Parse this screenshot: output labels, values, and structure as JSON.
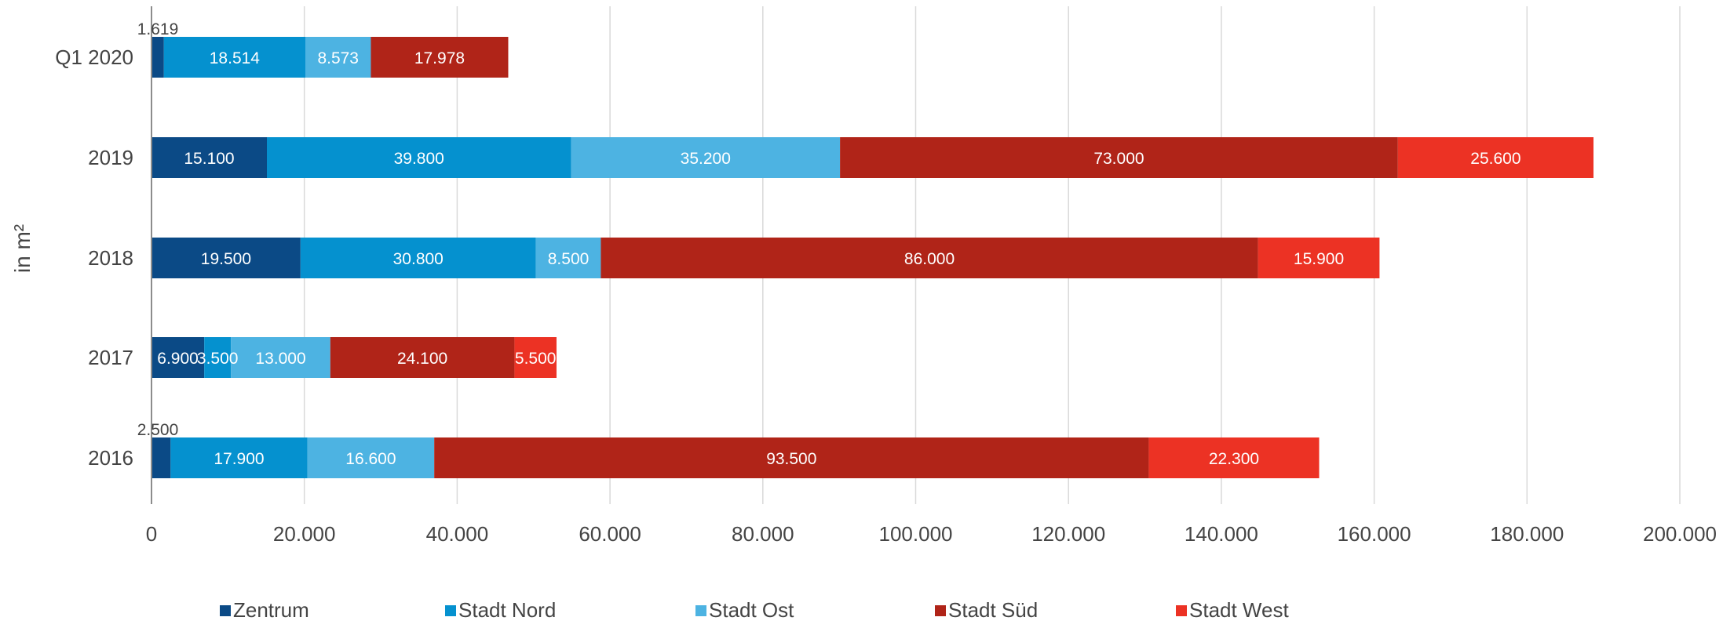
{
  "chart_data": {
    "type": "bar",
    "orientation": "horizontal",
    "stacked": true,
    "title": "",
    "xlabel": "",
    "ylabel": "in m²",
    "xlim": [
      0,
      200000
    ],
    "x_ticks": [
      0,
      20000,
      40000,
      60000,
      80000,
      100000,
      120000,
      140000,
      160000,
      180000,
      200000
    ],
    "x_tick_labels": [
      "0",
      "20.000",
      "40.000",
      "60.000",
      "80.000",
      "100.000",
      "120.000",
      "140.000",
      "160.000",
      "180.000",
      "200.000"
    ],
    "grid": "vertical",
    "legend_position": "bottom",
    "categories": [
      "Q1 2020",
      "2019",
      "2018",
      "2017",
      "2016"
    ],
    "series": [
      {
        "name": "Zentrum",
        "color": "#0b4a86",
        "label_color": "#ffffff",
        "values": [
          1619,
          15100,
          19500,
          6900,
          2500
        ],
        "labels": [
          "1.619",
          "15.100",
          "19.500",
          "6.900",
          "2.500"
        ]
      },
      {
        "name": "Stadt Nord",
        "color": "#0591cf",
        "label_color": "#ffffff",
        "values": [
          18514,
          39800,
          30800,
          3500,
          17900
        ],
        "labels": [
          "18.514",
          "39.800",
          "30.800",
          "3.500",
          "17.900"
        ]
      },
      {
        "name": "Stadt Ost",
        "color": "#4db3e2",
        "label_color": "#ffffff",
        "values": [
          8573,
          35200,
          8500,
          13000,
          16600
        ],
        "labels": [
          "8.573",
          "35.200",
          "8.500",
          "13.000",
          "16.600"
        ]
      },
      {
        "name": "Stadt Süd",
        "color": "#b02418",
        "label_color": "#ffffff",
        "values": [
          17978,
          73000,
          86000,
          24100,
          93500
        ],
        "labels": [
          "17.978",
          "73.000",
          "86.000",
          "24.100",
          "93.500"
        ]
      },
      {
        "name": "Stadt West",
        "color": "#ec3224",
        "label_color": "#ffffff",
        "values": [
          0,
          25600,
          15900,
          5500,
          22300
        ],
        "labels": [
          "",
          "25.600",
          "15.900",
          "5.500",
          "22.300"
        ]
      }
    ]
  }
}
